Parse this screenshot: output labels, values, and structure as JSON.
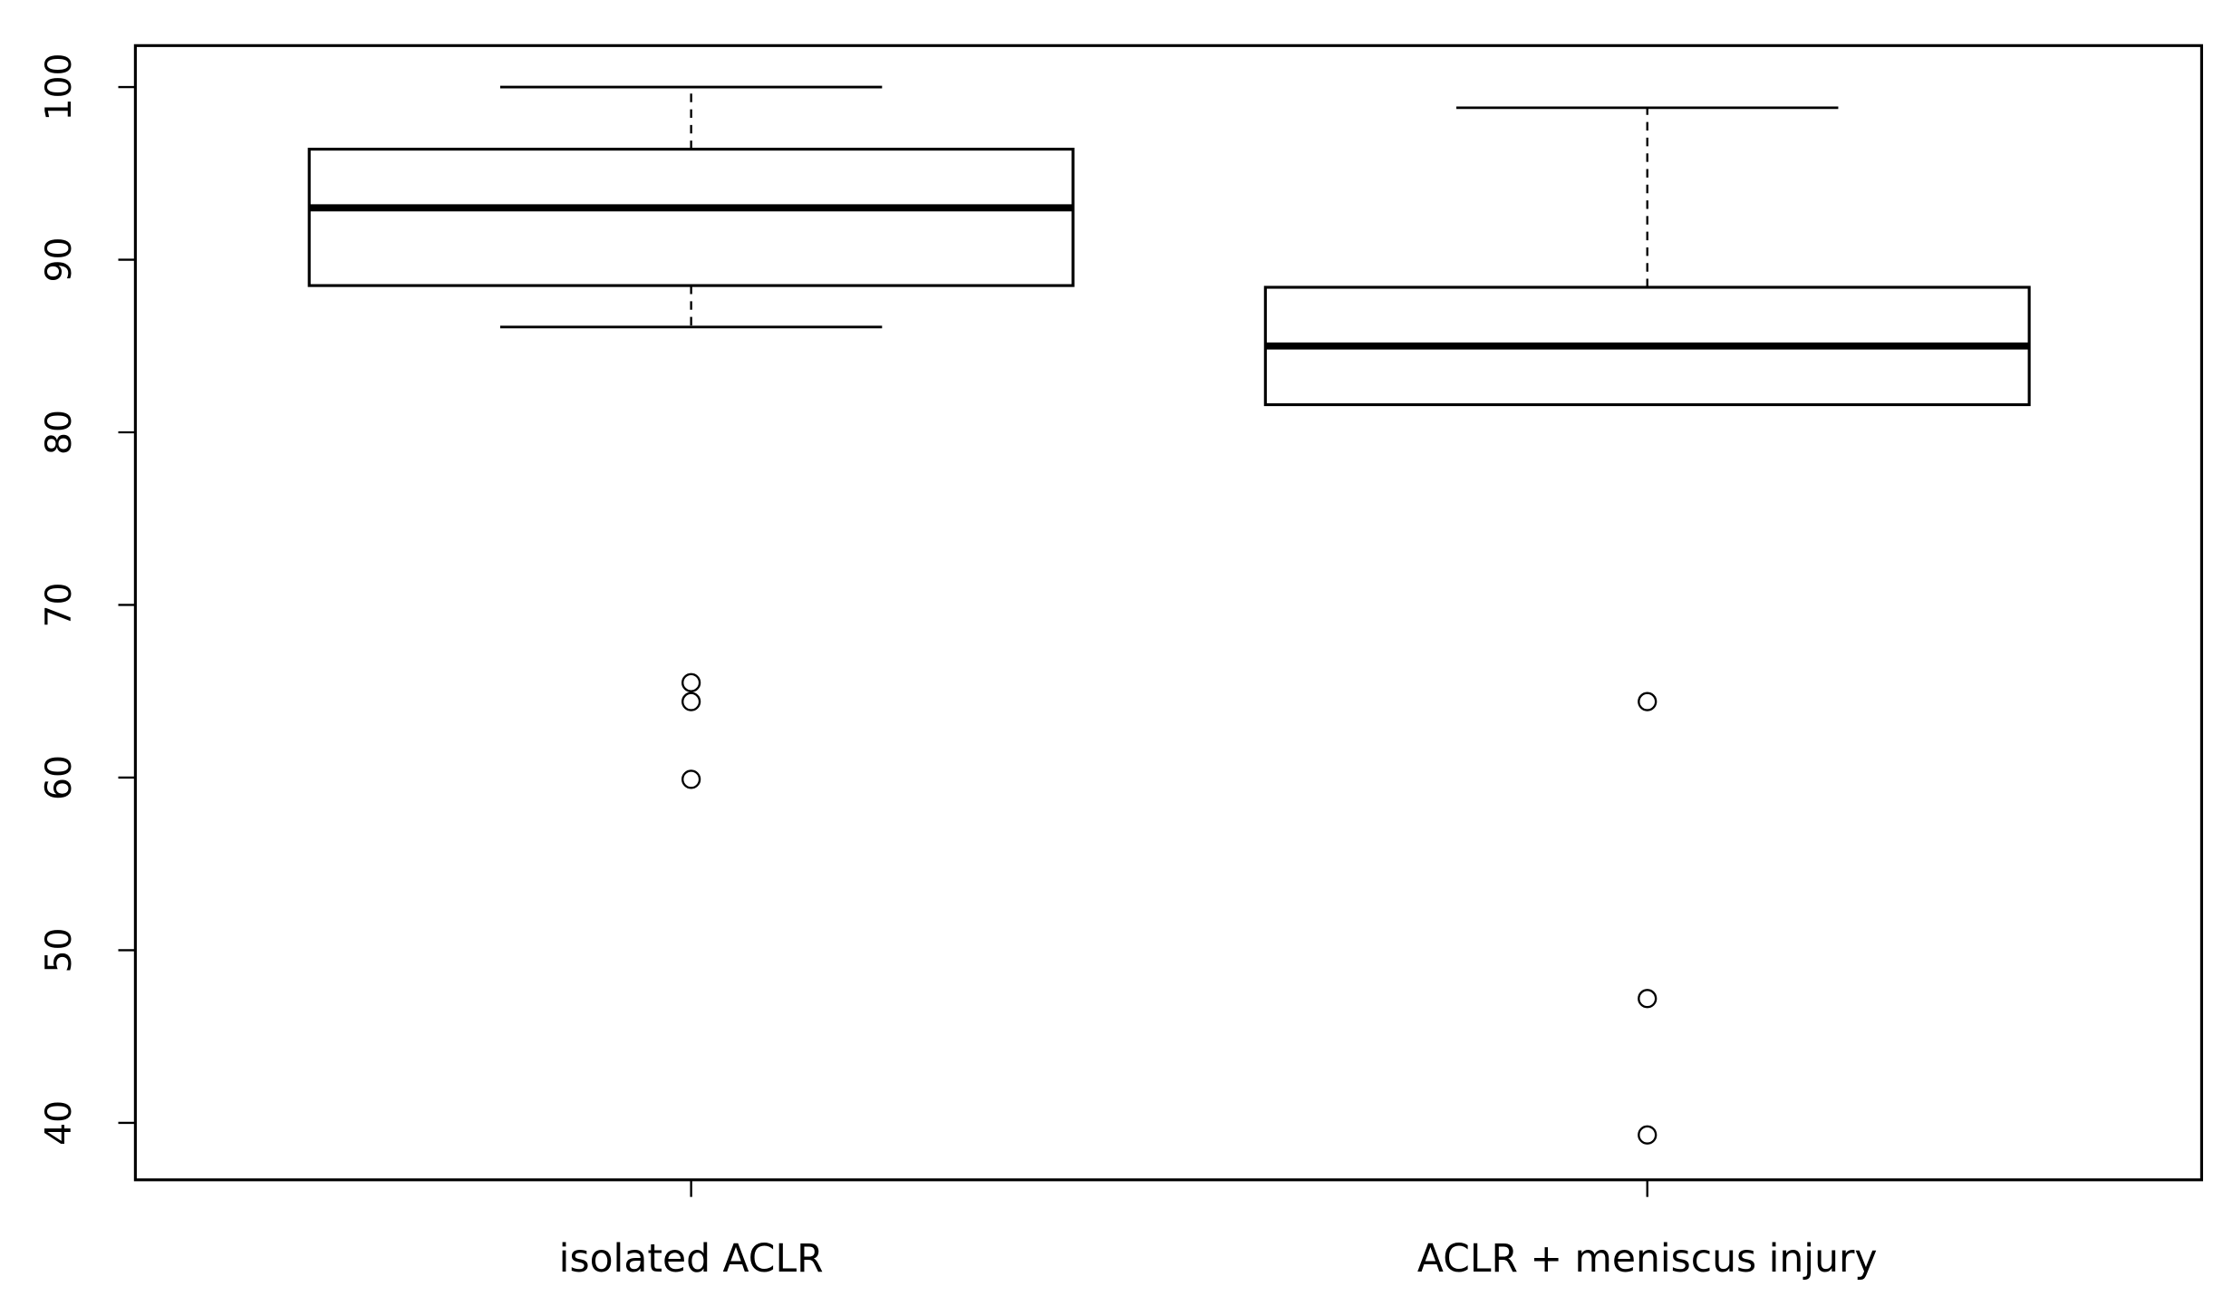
{
  "chart_data": {
    "type": "box",
    "categories": [
      "isolated ACLR",
      "ACLR + meniscus injury"
    ],
    "boxes": [
      {
        "min": 86.1,
        "q1": 88.5,
        "median": 93.0,
        "q3": 96.4,
        "max": 100,
        "outliers": [
          65.5,
          64.4,
          59.9
        ]
      },
      {
        "min": 81.6,
        "q1": 81.6,
        "median": 85.0,
        "q3": 88.4,
        "max": 98.8,
        "outliers": [
          64.4,
          47.2,
          39.3
        ]
      }
    ],
    "color": "#000000",
    "ylim": [
      36.7,
      102.4
    ],
    "yticks": [
      40,
      50,
      60,
      70,
      80,
      90,
      100
    ]
  }
}
